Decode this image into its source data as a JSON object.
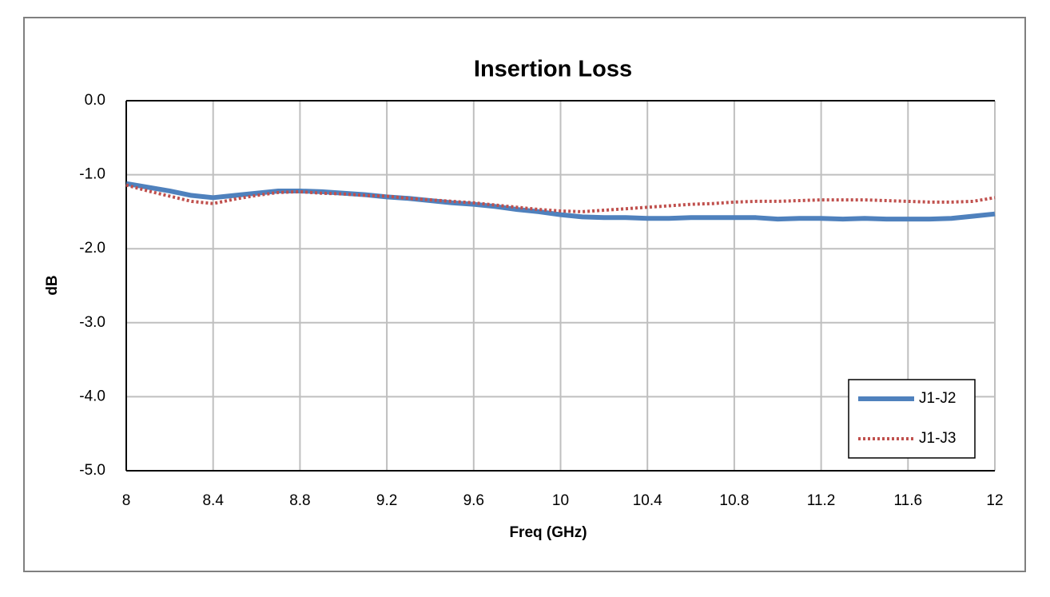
{
  "chart_data": {
    "type": "line",
    "title": "Insertion Loss",
    "x_label": "Freq (GHz)",
    "y_label": "dB",
    "x": [
      8,
      8.1,
      8.2,
      8.3,
      8.4,
      8.5,
      8.6,
      8.7,
      8.8,
      8.9,
      9,
      9.1,
      9.2,
      9.3,
      9.4,
      9.5,
      9.6,
      9.7,
      9.8,
      9.9,
      10,
      10.1,
      10.2,
      10.3,
      10.4,
      10.5,
      10.6,
      10.7,
      10.8,
      10.9,
      11,
      11.1,
      11.2,
      11.3,
      11.4,
      11.5,
      11.6,
      11.7,
      11.8,
      11.9,
      12
    ],
    "series": [
      {
        "name": "J1-J2",
        "color": "#4f81bd",
        "line_style": "solid",
        "values": [
          -1.12,
          -1.17,
          -1.22,
          -1.28,
          -1.31,
          -1.28,
          -1.25,
          -1.22,
          -1.22,
          -1.23,
          -1.25,
          -1.27,
          -1.3,
          -1.32,
          -1.35,
          -1.38,
          -1.4,
          -1.43,
          -1.47,
          -1.5,
          -1.54,
          -1.57,
          -1.58,
          -1.58,
          -1.59,
          -1.59,
          -1.58,
          -1.58,
          -1.58,
          -1.58,
          -1.6,
          -1.59,
          -1.59,
          -1.6,
          -1.59,
          -1.6,
          -1.6,
          -1.6,
          -1.59,
          -1.56,
          -1.53
        ]
      },
      {
        "name": "J1-J3",
        "color": "#c0504d",
        "line_style": "dotted",
        "values": [
          -1.14,
          -1.22,
          -1.29,
          -1.36,
          -1.39,
          -1.33,
          -1.28,
          -1.24,
          -1.23,
          -1.25,
          -1.26,
          -1.28,
          -1.29,
          -1.32,
          -1.34,
          -1.36,
          -1.38,
          -1.41,
          -1.44,
          -1.47,
          -1.49,
          -1.5,
          -1.48,
          -1.46,
          -1.44,
          -1.42,
          -1.4,
          -1.39,
          -1.37,
          -1.36,
          -1.36,
          -1.35,
          -1.34,
          -1.34,
          -1.34,
          -1.35,
          -1.36,
          -1.37,
          -1.37,
          -1.36,
          -1.31
        ]
      }
    ],
    "xlim": [
      8,
      12
    ],
    "xticks": [
      8,
      8.4,
      8.8,
      9.2,
      9.6,
      10,
      10.4,
      10.8,
      11.2,
      11.6,
      12
    ],
    "ylim": [
      -5,
      0
    ],
    "yticks": [
      {
        "value": 0,
        "label": "0.0"
      },
      {
        "value": -1,
        "label": "-1.0"
      },
      {
        "value": -2,
        "label": "-2.0"
      },
      {
        "value": -3,
        "label": "-3.0"
      },
      {
        "value": -4,
        "label": "-4.0"
      },
      {
        "value": -5,
        "label": "-5.0"
      }
    ],
    "grid": true,
    "legend": "lower right"
  }
}
